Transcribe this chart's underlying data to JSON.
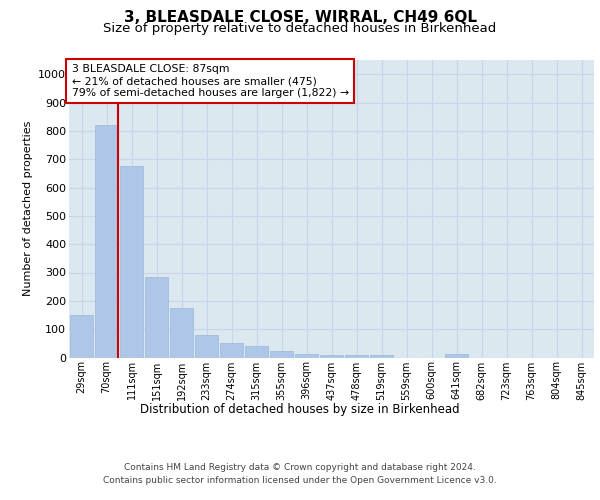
{
  "title": "3, BLEASDALE CLOSE, WIRRAL, CH49 6QL",
  "subtitle": "Size of property relative to detached houses in Birkenhead",
  "xlabel": "Distribution of detached houses by size in Birkenhead",
  "ylabel": "Number of detached properties",
  "categories": [
    "29sqm",
    "70sqm",
    "111sqm",
    "151sqm",
    "192sqm",
    "233sqm",
    "274sqm",
    "315sqm",
    "355sqm",
    "396sqm",
    "437sqm",
    "478sqm",
    "519sqm",
    "559sqm",
    "600sqm",
    "641sqm",
    "682sqm",
    "723sqm",
    "763sqm",
    "804sqm",
    "845sqm"
  ],
  "values": [
    150,
    820,
    675,
    285,
    175,
    78,
    52,
    42,
    22,
    14,
    10,
    8,
    8,
    0,
    0,
    12,
    0,
    0,
    0,
    0,
    0
  ],
  "bar_color": "#aec6e8",
  "bar_edge_color": "#9ab8d8",
  "vline_color": "#cc0000",
  "annotation_text": "3 BLEASDALE CLOSE: 87sqm\n← 21% of detached houses are smaller (475)\n79% of semi-detached houses are larger (1,822) →",
  "annotation_box_color": "#ffffff",
  "annotation_box_edge": "#cc0000",
  "ylim": [
    0,
    1050
  ],
  "yticks": [
    0,
    100,
    200,
    300,
    400,
    500,
    600,
    700,
    800,
    900,
    1000
  ],
  "grid_color": "#c8d4e8",
  "background_color": "#dce8f0",
  "footer_line1": "Contains HM Land Registry data © Crown copyright and database right 2024.",
  "footer_line2": "Contains public sector information licensed under the Open Government Licence v3.0.",
  "title_fontsize": 11,
  "subtitle_fontsize": 9.5
}
